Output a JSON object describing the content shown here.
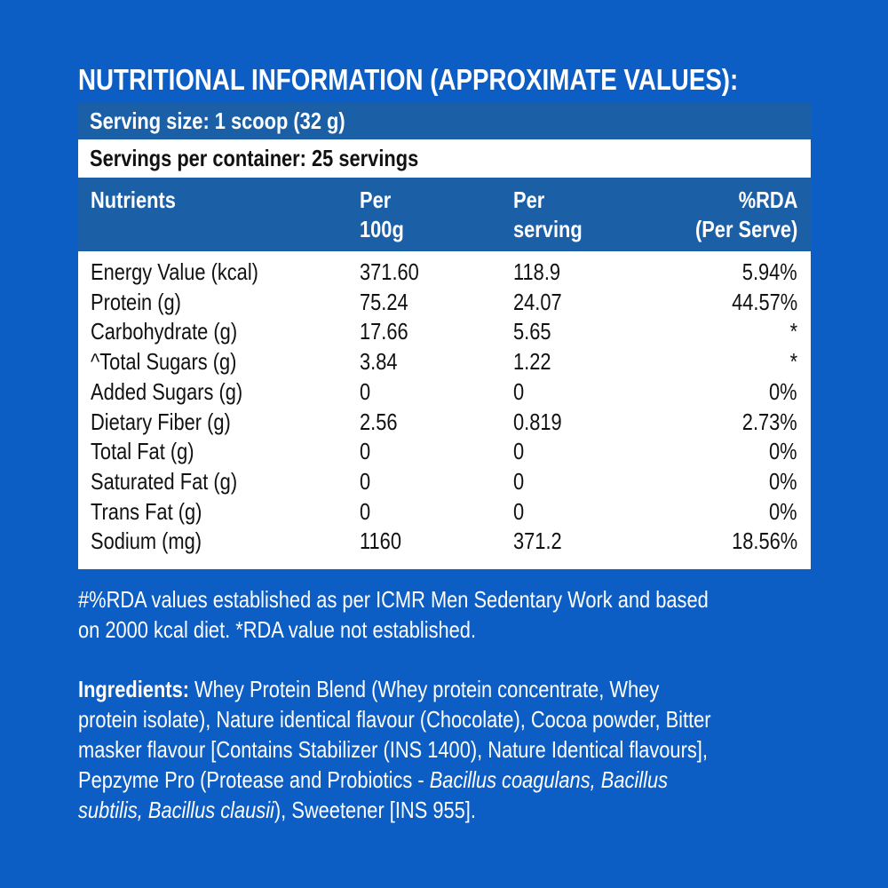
{
  "title": "NUTRITIONAL INFORMATION (APPROXIMATE VALUES):",
  "serving_size": "Serving size: 1 scoop (32 g)",
  "servings_per_container": "Servings per container: 25 servings",
  "headers": {
    "nutrients": "Nutrients",
    "per100_l1": "Per",
    "per100_l2": "100g",
    "perserv_l1": "Per",
    "perserv_l2": "serving",
    "rda_l1": "%RDA",
    "rda_l2": "(Per Serve)"
  },
  "rows": [
    {
      "name": "Energy Value (kcal)",
      "per100": "371.60",
      "serving": "118.9",
      "rda": "5.94%"
    },
    {
      "name": "Protein (g)",
      "per100": "75.24",
      "serving": "24.07",
      "rda": "44.57%"
    },
    {
      "name": "Carbohydrate (g)",
      "per100": "17.66",
      "serving": "5.65",
      "rda": "*"
    },
    {
      "name": "^Total Sugars (g)",
      "per100": "3.84",
      "serving": "1.22",
      "rda": "*"
    },
    {
      "name": "Added Sugars (g)",
      "per100": "0",
      "serving": "0",
      "rda": "0%"
    },
    {
      "name": "Dietary Fiber (g)",
      "per100": "2.56",
      "serving": "0.819",
      "rda": "2.73%"
    },
    {
      "name": "Total Fat (g)",
      "per100": "0",
      "serving": "0",
      "rda": "0%"
    },
    {
      "name": "Saturated Fat (g)",
      "per100": "0",
      "serving": "0",
      "rda": "0%"
    },
    {
      "name": "Trans Fat (g)",
      "per100": "0",
      "serving": "0",
      "rda": "0%"
    },
    {
      "name": "Sodium (mg)",
      "per100": "1160",
      "serving": "371.2",
      "rda": "18.56%"
    }
  ],
  "footnote": [
    "#%RDA values established as per ICMR Men Sedentary Work and based",
    "on 2000 kcal diet. *RDA value not established."
  ],
  "ingredients": {
    "label": "Ingredients:",
    "line1": " Whey Protein Blend (Whey protein concentrate, Whey",
    "line2": "protein isolate), Nature identical flavour (Chocolate), Cocoa powder, Bitter",
    "line3": "masker flavour [Contains Stabilizer (INS 1400), Nature Identical flavours],",
    "line4a": "Pepzyme Pro (Protease and Probiotics - ",
    "line4b": "Bacillus coagulans, Bacillus",
    "line5a": "subtilis, Bacillus clausii",
    "line5b": "), Sweetener [INS 955]."
  },
  "colors": {
    "background": "#0c5dc4",
    "header_band": "#1b60a7",
    "table_body": "#ffffff"
  }
}
